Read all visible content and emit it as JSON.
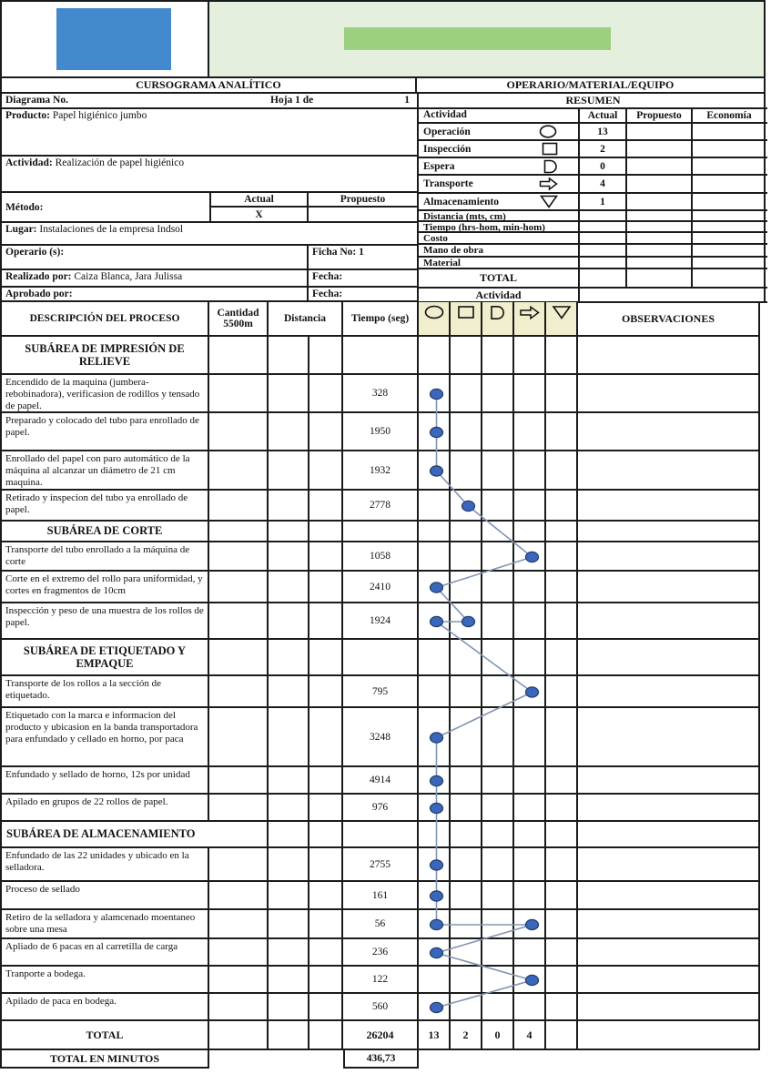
{
  "page": {
    "title_left": "CURSOGRAMA ANALÍTICO",
    "title_right": "OPERARIO/MATERIAL/EQUIPO"
  },
  "colors": {
    "logo_blue": "#4289ce",
    "panel_green": "#e4efdd",
    "bar_green": "#9ccf7f",
    "symbol_header_bg": "#f1eecd",
    "dot_fill": "#3a67bb",
    "dot_stroke": "#203a66",
    "flow_line": "#8195b5",
    "border": "#1b1b1b"
  },
  "info": {
    "diagrama_label": "Diagrama No.",
    "hoja_label": "Hoja 1  de",
    "hoja_value": "1",
    "producto_label": "Producto:",
    "producto_value": "Papel higiénico jumbo",
    "actividad_label": "Actividad:",
    "actividad_value": "Realización de papel higiénico",
    "metodo_label": "Método:",
    "metodo_actual_label": "Actual",
    "metodo_propuesto_label": "Propuesto",
    "metodo_actual_value": "X",
    "metodo_propuesto_value": "",
    "lugar_label": "Lugar:",
    "lugar_value": "Instalaciones de la empresa Indsol",
    "operario_label": "Operario (s):",
    "ficha_value": "Ficha No: 1",
    "realizado_label": "Realizado por:",
    "realizado_value": "Caiza Blanca, Jara Julissa",
    "realizado_fecha_label": "Fecha:",
    "aprobado_label": "Aprobado por:",
    "aprobado_value": "",
    "aprobado_fecha_label": "Fecha:"
  },
  "resumen": {
    "title": "RESUMEN",
    "header": {
      "actividad": "Actividad",
      "actual": "Actual",
      "propuesto": "Propuesto",
      "economia": "Economía"
    },
    "activity_rows": [
      {
        "label": "Operación",
        "symbol": "operation-circle-icon",
        "actual": "13",
        "propuesto": "",
        "economia": ""
      },
      {
        "label": "Inspección",
        "symbol": "inspection-square-icon",
        "actual": "2",
        "propuesto": "",
        "economia": ""
      },
      {
        "label": "Espera",
        "symbol": "delay-d-icon",
        "actual": "0",
        "propuesto": "",
        "economia": ""
      },
      {
        "label": "Transporte",
        "symbol": "transport-arrow-icon",
        "actual": "4",
        "propuesto": "",
        "economia": ""
      },
      {
        "label": "Almacenamiento",
        "symbol": "storage-triangle-icon",
        "actual": "1",
        "propuesto": "",
        "economia": ""
      }
    ],
    "extra_rows": [
      {
        "label": "Distancia (mts, cm)"
      },
      {
        "label": "Tiempo (hrs-hom, min-hom)"
      },
      {
        "label": "Costo"
      },
      {
        "label": "Mano de obra"
      },
      {
        "label": "Material"
      }
    ],
    "total_label": "TOTAL",
    "actividad_label": "Actividad"
  },
  "process": {
    "headers": {
      "descripcion": "DESCRIPCIÓN DEL PROCESO",
      "cantidad_line1": "Cantidad",
      "cantidad_line2": "5500m",
      "distancia": "Distancia",
      "tiempo": "Tiempo (seg)",
      "observaciones": "OBSERVACIONES"
    },
    "symbol_columns": [
      "operation",
      "inspection",
      "delay",
      "transport",
      "storage"
    ],
    "rows": [
      {
        "type": "section",
        "desc": "SUBÁREA DE IMPRESIÓN DE RELIEVE"
      },
      {
        "type": "item",
        "desc": "Encendido de la maquina (jumbera-rebobinadora), verificasion de rodillos y tensado de papel.",
        "time": "328",
        "dots": [
          1
        ]
      },
      {
        "type": "item",
        "desc": "Preparado y colocado del tubo para enrollado de papel.",
        "time": "1950",
        "dots": [
          1
        ]
      },
      {
        "type": "item",
        "desc": "Enrollado del papel con paro automático de la máquina al alcanzar un diámetro de 21 cm maquina.",
        "time": "1932",
        "dots": [
          1
        ]
      },
      {
        "type": "item",
        "desc": "Retirado y inspecion del tubo ya enrollado de papel.",
        "time": "2778",
        "dots": [
          2
        ]
      },
      {
        "type": "section",
        "desc": "SUBÁREA DE CORTE"
      },
      {
        "type": "item",
        "desc": "Transporte del tubo enrollado a la máquina de corte",
        "time": "1058",
        "dots": [
          4
        ]
      },
      {
        "type": "item",
        "desc": "Corte en el extremo del rollo para uniformidad, y cortes en fragmentos de 10cm",
        "time": "2410",
        "dots": [
          1
        ]
      },
      {
        "type": "item",
        "desc": "Inspección y peso de una muestra de los rollos de papel.",
        "time": "1924",
        "dots": [
          2,
          1
        ]
      },
      {
        "type": "section",
        "desc": "SUBÁREA DE ETIQUETADO Y EMPAQUE"
      },
      {
        "type": "item",
        "desc": "Transporte de los rollos a la sección de etiquetado.",
        "time": "795",
        "dots": [
          4
        ]
      },
      {
        "type": "item",
        "desc": "Etiquetado con la marca e  informacion del producto y ubicasion en la banda transportadora para enfundado y cellado en horno, por paca",
        "time": "3248",
        "dots": [
          1
        ]
      },
      {
        "type": "item",
        "desc": "Enfundado  y sellado de horno, 12s por unidad",
        "time": "4914",
        "dots": [
          1
        ]
      },
      {
        "type": "item",
        "desc": "Apilado  en grupos de 22 rollos de papel.",
        "time": "976",
        "dots": [
          1
        ]
      },
      {
        "type": "section",
        "wide": true,
        "desc": "SUBÁREA DE ALMACENAMIENTO"
      },
      {
        "type": "item",
        "desc": "Enfundado de las 22 unidades y ubicado en la selladora.",
        "time": "2755",
        "dots": [
          1
        ]
      },
      {
        "type": "item",
        "desc": "Proceso de sellado",
        "time": "161",
        "dots": [
          1
        ]
      },
      {
        "type": "item",
        "desc": "Retiro de la selladora y alamcenado moentaneo sobre una mesa",
        "time": "56",
        "dots": [
          1,
          4
        ]
      },
      {
        "type": "item",
        "desc": "Apliado de 6 pacas en al carretilla de carga",
        "time": "236",
        "dots": [
          1
        ]
      },
      {
        "type": "item",
        "desc": "Tranporte  a bodega.",
        "time": "122",
        "dots": [
          4
        ]
      },
      {
        "type": "item",
        "desc": "Apilado de paca en bodega.",
        "time": "560",
        "dots": [
          1
        ]
      }
    ],
    "total": {
      "label": "TOTAL",
      "time": "26204",
      "counts": [
        "13",
        "2",
        "0",
        "4",
        ""
      ]
    },
    "total_minutes": {
      "label": "TOTAL EN MINUTOS",
      "value": "436,73"
    }
  }
}
